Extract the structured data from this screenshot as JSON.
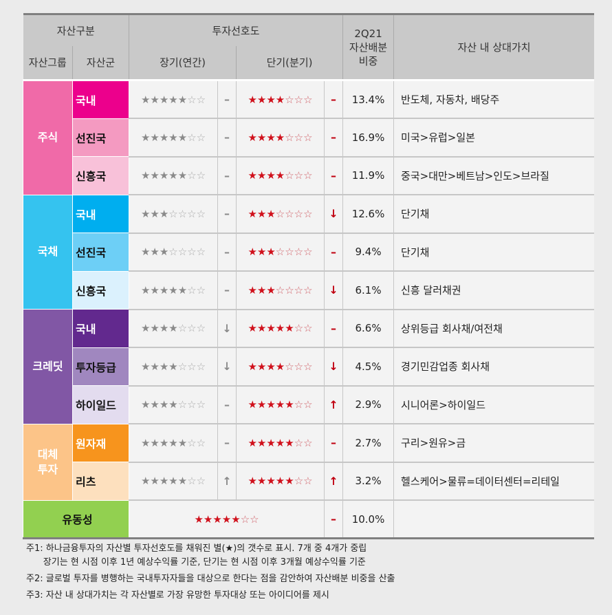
{
  "header": {
    "asset_class": "자산구분",
    "preference": "투자선호도",
    "weight": [
      "2Q21",
      "자산배분",
      "비중"
    ],
    "relative_value": "자산 내 상대가치",
    "asset_group": "자산그룹",
    "asset": "자산군",
    "long": "장기(연간)",
    "short": "단기(분기)"
  },
  "groups": [
    {
      "name": "주식",
      "color": "#f06aa8",
      "rows": [
        {
          "asset": "국내",
          "color": "#ec008c",
          "text_color": "#ffffff",
          "long": 5,
          "long_chg": "–",
          "short": 4,
          "short_chg": "–",
          "weight": "13.4%",
          "value": "반도체, 자동차, 배당주"
        },
        {
          "asset": "선진국",
          "color": "#f49ac1",
          "text_color": "#111111",
          "long": 5,
          "long_chg": "–",
          "short": 4,
          "short_chg": "–",
          "weight": "16.9%",
          "value": "미국>유럽>일본"
        },
        {
          "asset": "신흥국",
          "color": "#f8c1d9",
          "text_color": "#111111",
          "long": 5,
          "long_chg": "–",
          "short": 4,
          "short_chg": "–",
          "weight": "11.9%",
          "value": "중국>대만>베트남>인도>브라질"
        }
      ]
    },
    {
      "name": "국채",
      "color": "#35c3ef",
      "rows": [
        {
          "asset": "국내",
          "color": "#00aeef",
          "text_color": "#ffffff",
          "long": 3,
          "long_chg": "–",
          "short": 3,
          "short_chg": "↓",
          "weight": "12.6%",
          "value": "단기채"
        },
        {
          "asset": "선진국",
          "color": "#6dcff6",
          "text_color": "#111111",
          "long": 3,
          "long_chg": "–",
          "short": 3,
          "short_chg": "–",
          "weight": "9.4%",
          "value": "단기채"
        },
        {
          "asset": "신흥국",
          "color": "#dbf1fd",
          "text_color": "#111111",
          "long": 5,
          "long_chg": "–",
          "short": 3,
          "short_chg": "↓",
          "weight": "6.1%",
          "value": "신흥 달러채권"
        }
      ]
    },
    {
      "name": "크레딧",
      "color": "#8157a5",
      "rows": [
        {
          "asset": "국내",
          "color": "#62298e",
          "text_color": "#ffffff",
          "long": 4,
          "long_chg": "↓",
          "short": 5,
          "short_chg": "–",
          "weight": "6.6%",
          "value": "상위등급 회사채/여전채"
        },
        {
          "asset": "투자등급",
          "color": "#a087bf",
          "text_color": "#111111",
          "long": 4,
          "long_chg": "↓",
          "short": 4,
          "short_chg": "↓",
          "weight": "4.5%",
          "value": "경기민감업종 회사채"
        },
        {
          "asset": "하이일드",
          "color": "#e3dcef",
          "text_color": "#111111",
          "long": 4,
          "long_chg": "–",
          "short": 5,
          "short_chg": "↑",
          "weight": "2.9%",
          "value": "시니어론>하이일드"
        }
      ]
    },
    {
      "name": "대체\n투자",
      "color": "#fcc488",
      "rows": [
        {
          "asset": "원자재",
          "color": "#f7941d",
          "text_color": "#ffffff",
          "long": 5,
          "long_chg": "–",
          "short": 5,
          "short_chg": "–",
          "weight": "2.7%",
          "value": "구리>원유>금"
        },
        {
          "asset": "리츠",
          "color": "#fde0be",
          "text_color": "#111111",
          "long": 5,
          "long_chg": "↑",
          "short": 5,
          "short_chg": "↑",
          "weight": "3.2%",
          "value": "헬스케어>물류=데이터센터=리테일"
        }
      ]
    }
  ],
  "liquidity": {
    "name": "유동성",
    "color": "#92d050",
    "stars": 5,
    "chg": "–",
    "weight": "10.0%",
    "value": ""
  },
  "total_stars": 7,
  "notes": [
    "주1: 하나금융투자의 자산별 투자선호도를 채워진 별(★)의 갯수로 표시. 7개 중 4개가 중립",
    "      장기는 현 시점 이후 1년 예상수익률 기준, 단기는 현 시점 이후 3개월 예상수익률 기준",
    "주2: 글로벌 투자를 병행하는 국내투자자들을 대상으로 한다는 점을 감안하여 자산배분 비중을 산출",
    "주3: 자산 내 상대가치는 각 자산별로 가장 유망한 투자대상 또는 아이디어를 제시"
  ]
}
